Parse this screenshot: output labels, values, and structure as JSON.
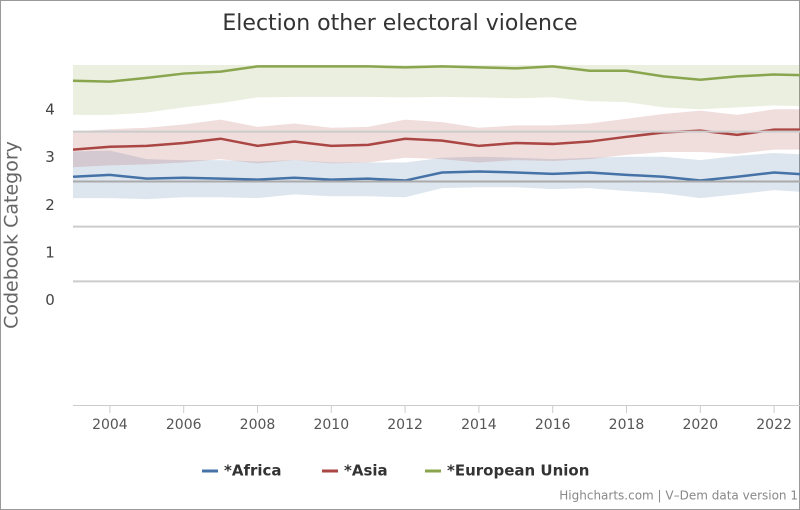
{
  "chart_data": {
    "type": "line",
    "title": "Election other electoral violence",
    "y_label": "Codebook Category",
    "credits": "Highcharts.com | V–Dem data version 1",
    "x": [
      2003,
      2004,
      2005,
      2006,
      2007,
      2008,
      2009,
      2010,
      2011,
      2012,
      2013,
      2014,
      2015,
      2016,
      2017,
      2018,
      2019,
      2020,
      2021,
      2022,
      2023
    ],
    "xlim": [
      2003,
      2023
    ],
    "xticks": [
      2004,
      2006,
      2008,
      2010,
      2012,
      2014,
      2016,
      2018,
      2020,
      2022
    ],
    "ylim": [
      -2.2,
      4.95
    ],
    "yticks": [
      0,
      1,
      2,
      3,
      4
    ],
    "plot_lines": [
      3.55,
      2.5,
      1.55,
      0.4
    ],
    "series": [
      {
        "name": "*Africa",
        "color": "#4572a7",
        "values": [
          2.6,
          2.64,
          2.56,
          2.58,
          2.56,
          2.54,
          2.58,
          2.54,
          2.56,
          2.52,
          2.69,
          2.71,
          2.69,
          2.66,
          2.69,
          2.64,
          2.6,
          2.52,
          2.6,
          2.69,
          2.64
        ],
        "lower": [
          2.15,
          2.15,
          2.13,
          2.17,
          2.17,
          2.15,
          2.23,
          2.19,
          2.19,
          2.17,
          2.36,
          2.38,
          2.38,
          2.34,
          2.36,
          2.3,
          2.25,
          2.15,
          2.23,
          2.32,
          2.27
        ],
        "upper": [
          3.13,
          3.15,
          2.97,
          2.95,
          2.95,
          2.92,
          2.95,
          2.9,
          2.9,
          2.9,
          3.0,
          3.02,
          3.0,
          2.97,
          3.0,
          3.02,
          3.02,
          2.95,
          3.04,
          3.1,
          3.06
        ]
      },
      {
        "name": "*Asia",
        "color": "#aa4643",
        "values": [
          3.17,
          3.23,
          3.25,
          3.31,
          3.4,
          3.25,
          3.34,
          3.25,
          3.27,
          3.4,
          3.36,
          3.25,
          3.31,
          3.29,
          3.34,
          3.44,
          3.53,
          3.57,
          3.48,
          3.59,
          3.59
        ],
        "lower": [
          2.8,
          2.84,
          2.86,
          2.9,
          2.97,
          2.88,
          2.95,
          2.88,
          2.9,
          3.0,
          2.97,
          2.9,
          2.95,
          2.93,
          2.97,
          3.06,
          3.12,
          3.12,
          3.08,
          3.17,
          3.17
        ],
        "upper": [
          3.55,
          3.6,
          3.63,
          3.7,
          3.8,
          3.65,
          3.72,
          3.63,
          3.65,
          3.8,
          3.75,
          3.63,
          3.68,
          3.68,
          3.72,
          3.82,
          3.92,
          3.99,
          3.9,
          4.02,
          4.02
        ]
      },
      {
        "name": "*European Union",
        "color": "#89a54e",
        "values": [
          4.62,
          4.6,
          4.68,
          4.77,
          4.81,
          4.92,
          4.92,
          4.92,
          4.92,
          4.9,
          4.92,
          4.9,
          4.88,
          4.92,
          4.83,
          4.83,
          4.71,
          4.64,
          4.71,
          4.75,
          4.73
        ],
        "lower": [
          3.9,
          3.9,
          3.95,
          4.06,
          4.15,
          4.27,
          4.28,
          4.28,
          4.28,
          4.27,
          4.28,
          4.27,
          4.25,
          4.27,
          4.19,
          4.17,
          4.06,
          4.02,
          4.06,
          4.1,
          4.08
        ],
        "upper": [
          4.95,
          4.95,
          4.95,
          4.95,
          4.95,
          4.95,
          4.95,
          4.95,
          4.95,
          4.95,
          4.95,
          4.95,
          4.95,
          4.95,
          4.95,
          4.95,
          4.95,
          4.95,
          4.95,
          4.95,
          4.95
        ]
      }
    ]
  }
}
